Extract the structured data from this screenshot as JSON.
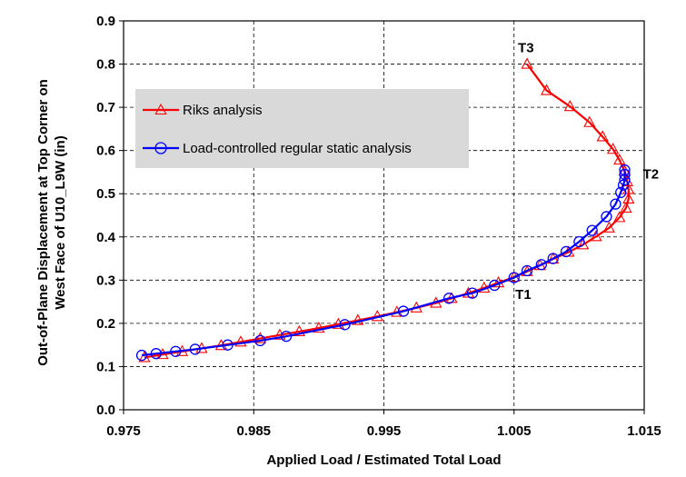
{
  "chart_data": {
    "type": "line",
    "title": "",
    "xlabel": "Applied Load / Estimated Total Load",
    "ylabel_lines": [
      "Out-of-Plane Displacement at Top Corner on",
      "West Face of U10_L9W (in)"
    ],
    "xlim": [
      0.975,
      1.015
    ],
    "ylim": [
      0.0,
      0.9
    ],
    "x_ticks": [
      0.975,
      0.985,
      0.995,
      1.005,
      1.015
    ],
    "x_tick_labels": [
      "0.975",
      "0.985",
      "0.995",
      "1.005",
      "1.015"
    ],
    "y_ticks": [
      0.0,
      0.1,
      0.2,
      0.3,
      0.4,
      0.5,
      0.6,
      0.7,
      0.8,
      0.9
    ],
    "y_tick_labels": [
      "0.0",
      "0.1",
      "0.2",
      "0.3",
      "0.4",
      "0.5",
      "0.6",
      "0.7",
      "0.8",
      "0.9"
    ],
    "grid": "major, dashed",
    "legend_position": "upper-left",
    "series": [
      {
        "name": "Riks analysis",
        "color": "#ff0000",
        "marker": "triangle",
        "x": [
          0.9766,
          0.978,
          0.9795,
          0.981,
          0.9825,
          0.984,
          0.9855,
          0.987,
          0.9885,
          0.99,
          0.9915,
          0.993,
          0.9945,
          0.996,
          0.9975,
          0.999,
          1.0002,
          1.0015,
          1.0027,
          1.0038,
          1.005,
          1.006,
          1.007,
          1.008,
          1.0092,
          1.0103,
          1.0113,
          1.0123,
          1.0131,
          1.0136,
          1.0138,
          1.0138,
          1.0137,
          1.0135,
          1.0131,
          1.0126,
          1.0118,
          1.0108,
          1.0093,
          1.0075,
          1.006
        ],
        "y": [
          0.121,
          0.128,
          0.135,
          0.142,
          0.149,
          0.157,
          0.165,
          0.173,
          0.181,
          0.189,
          0.198,
          0.207,
          0.216,
          0.226,
          0.236,
          0.247,
          0.258,
          0.27,
          0.282,
          0.294,
          0.307,
          0.32,
          0.334,
          0.349,
          0.365,
          0.382,
          0.401,
          0.421,
          0.445,
          0.467,
          0.488,
          0.51,
          0.528,
          0.552,
          0.578,
          0.603,
          0.632,
          0.665,
          0.702,
          0.739,
          0.8
        ]
      },
      {
        "name": "Load-controlled regular static analysis",
        "color": "#0000ff",
        "marker": "circle",
        "x": [
          0.9764,
          0.9775,
          0.979,
          0.9805,
          0.983,
          0.9855,
          0.9875,
          0.992,
          0.9965,
          1.0,
          1.0018,
          1.0035,
          1.005,
          1.006,
          1.0071,
          1.008,
          1.009,
          1.01,
          1.011,
          1.0121,
          1.0128,
          1.0132,
          1.0134,
          1.0135,
          1.0135,
          1.0135
        ],
        "y": [
          0.126,
          0.13,
          0.135,
          0.14,
          0.15,
          0.16,
          0.17,
          0.197,
          0.228,
          0.258,
          0.27,
          0.288,
          0.306,
          0.322,
          0.336,
          0.35,
          0.366,
          0.389,
          0.415,
          0.447,
          0.476,
          0.503,
          0.52,
          0.532,
          0.545,
          0.555
        ]
      }
    ],
    "annotations": [
      {
        "text": "T1",
        "x": 1.0051,
        "y": 0.257
      },
      {
        "text": "T2",
        "x": 1.0149,
        "y": 0.535
      },
      {
        "text": "T3",
        "x": 1.0053,
        "y": 0.827
      }
    ]
  }
}
